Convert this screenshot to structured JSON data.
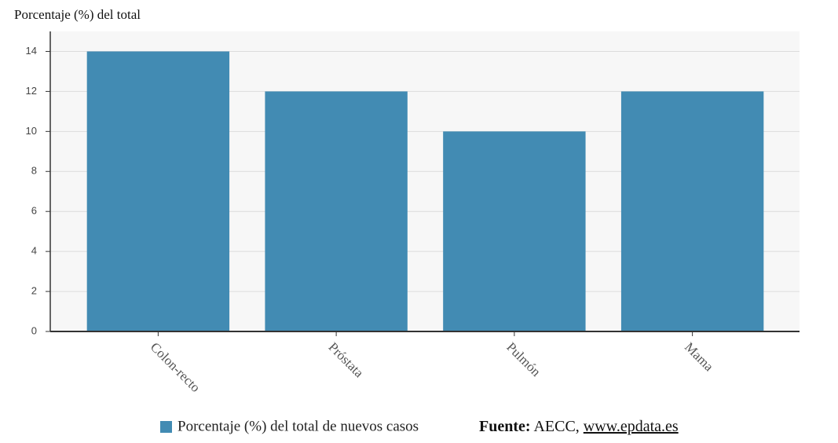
{
  "chart_data": {
    "type": "bar",
    "y_label": "Porcentaje (%) del total",
    "categories": [
      "Colon-recto",
      "Próstata",
      "Pulmón",
      "Mama"
    ],
    "series": [
      {
        "name": "Porcentaje (%) del total de nuevos casos",
        "color": "#428bb3",
        "values": [
          14,
          12,
          10,
          12
        ]
      }
    ],
    "ylim": [
      0,
      15
    ],
    "yticks": [
      0,
      2,
      4,
      6,
      8,
      10,
      12,
      14
    ],
    "grid": true,
    "source": {
      "label": "Fuente:",
      "text": "AECC,",
      "link": "www.epdata.es"
    }
  }
}
